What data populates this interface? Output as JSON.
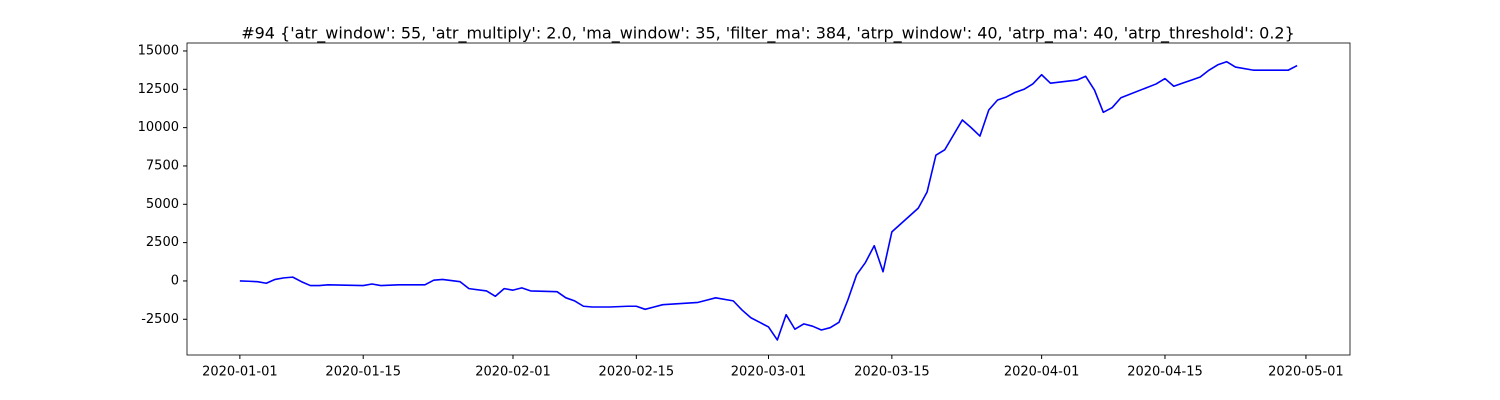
{
  "chart_data": {
    "type": "line",
    "title": "#94 {'atr_window': 55, 'atr_multiply': 2.0, 'ma_window': 35, 'filter_ma': 384, 'atrp_window': 40, 'atrp_ma': 40, 'atrp_threshold': 0.2}",
    "x": [
      "2020-01-01",
      "2020-01-02",
      "2020-01-03",
      "2020-01-04",
      "2020-01-05",
      "2020-01-06",
      "2020-01-07",
      "2020-01-08",
      "2020-01-09",
      "2020-01-10",
      "2020-01-11",
      "2020-01-15",
      "2020-01-16",
      "2020-01-17",
      "2020-01-19",
      "2020-01-22",
      "2020-01-23",
      "2020-01-24",
      "2020-01-26",
      "2020-01-27",
      "2020-01-29",
      "2020-01-30",
      "2020-01-31",
      "2020-02-01",
      "2020-02-02",
      "2020-02-03",
      "2020-02-06",
      "2020-02-07",
      "2020-02-08",
      "2020-02-09",
      "2020-02-10",
      "2020-02-12",
      "2020-02-14",
      "2020-02-15",
      "2020-02-16",
      "2020-02-17",
      "2020-02-18",
      "2020-02-22",
      "2020-02-23",
      "2020-02-24",
      "2020-02-26",
      "2020-02-27",
      "2020-02-28",
      "2020-02-29",
      "2020-03-01",
      "2020-03-02",
      "2020-03-03",
      "2020-03-04",
      "2020-03-05",
      "2020-03-06",
      "2020-03-07",
      "2020-03-08",
      "2020-03-09",
      "2020-03-10",
      "2020-03-11",
      "2020-03-12",
      "2020-03-13",
      "2020-03-14",
      "2020-03-15",
      "2020-03-18",
      "2020-03-19",
      "2020-03-20",
      "2020-03-21",
      "2020-03-23",
      "2020-03-24",
      "2020-03-25",
      "2020-03-26",
      "2020-03-27",
      "2020-03-28",
      "2020-03-29",
      "2020-03-30",
      "2020-03-31",
      "2020-04-01",
      "2020-04-02",
      "2020-04-05",
      "2020-04-06",
      "2020-04-07",
      "2020-04-08",
      "2020-04-09",
      "2020-04-10",
      "2020-04-14",
      "2020-04-15",
      "2020-04-16",
      "2020-04-17",
      "2020-04-18",
      "2020-04-19",
      "2020-04-20",
      "2020-04-21",
      "2020-04-22",
      "2020-04-23",
      "2020-04-25",
      "2020-04-28",
      "2020-04-29",
      "2020-04-30"
    ],
    "series": [
      {
        "color": "#0000ff",
        "values": [
          0,
          -20,
          -50,
          -150,
          100,
          200,
          250,
          -50,
          -300,
          -300,
          -250,
          -300,
          -200,
          -300,
          -250,
          -250,
          50,
          100,
          -50,
          -500,
          -650,
          -1000,
          -500,
          -600,
          -450,
          -650,
          -700,
          -1100,
          -1300,
          -1650,
          -1700,
          -1700,
          -1650,
          -1650,
          -1850,
          -1700,
          -1550,
          -1400,
          -1250,
          -1100,
          -1300,
          -1900,
          -2400,
          -2700,
          -3000,
          -3850,
          -2200,
          -3150,
          -2800,
          -2950,
          -3200,
          -3050,
          -2700,
          -1250,
          400,
          1200,
          2300,
          600,
          3200,
          4750,
          5800,
          8200,
          8550,
          10500,
          10000,
          9450,
          11150,
          11800,
          12000,
          12300,
          12500,
          12850,
          13450,
          12900,
          13100,
          13350,
          12450,
          11000,
          11300,
          11950,
          12850,
          13200,
          12700,
          12900,
          13100,
          13300,
          13750,
          14100,
          14300,
          13950,
          13750,
          13750,
          13750,
          14050
        ]
      }
    ],
    "xlim": [
      "2019-12-26",
      "2020-05-06"
    ],
    "xticks": [
      "2020-01-01",
      "2020-01-15",
      "2020-02-01",
      "2020-02-15",
      "2020-03-01",
      "2020-03-15",
      "2020-04-01",
      "2020-04-15",
      "2020-05-01"
    ],
    "ylim": [
      -4830,
      15520
    ],
    "yticks": [
      -2500,
      0,
      2500,
      5000,
      7500,
      10000,
      12500,
      15000
    ]
  }
}
